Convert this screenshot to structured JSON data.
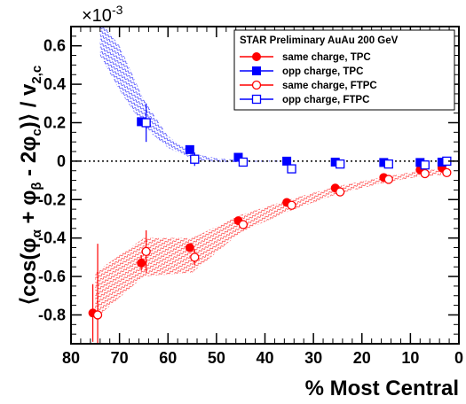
{
  "chart_data": {
    "type": "scatter",
    "exponent_label": "×10",
    "exponent_power": "-3",
    "xlabel": "% Most Central",
    "ylabel": {
      "open": "⟨cos(φ",
      "a": "α",
      "plus": " + φ",
      "b": "β",
      "minus": " - 2φ",
      "c": "c",
      "close": ")⟩ / v",
      "v2c": "2,c"
    },
    "xlim": [
      80,
      0
    ],
    "ylim": [
      -0.95,
      0.7
    ],
    "x_reversed": true,
    "xticks": [
      80,
      70,
      60,
      50,
      40,
      30,
      20,
      10,
      0
    ],
    "yticks": [
      -0.8,
      -0.6,
      -0.4,
      -0.2,
      0,
      0.2,
      0.4,
      0.6
    ],
    "xtick_labels": [
      "80",
      "70",
      "60",
      "50",
      "40",
      "30",
      "20",
      "10",
      "0"
    ],
    "ytick_labels": [
      "-0.8",
      "-0.6",
      "-0.4",
      "-0.2",
      "0",
      "0.2",
      "0.4",
      "0.6"
    ],
    "zero_line": true,
    "legend": {
      "title": "STAR Preliminary  AuAu 200 GeV",
      "placement": "top-right"
    },
    "series": [
      {
        "name": "same charge, TPC",
        "color": "#ff0000",
        "marker": "circle-filled",
        "points": [
          {
            "x": 75.5,
            "y": -0.79,
            "err": 0.15
          },
          {
            "x": 65.5,
            "y": -0.53,
            "err": 0.04
          },
          {
            "x": 55.5,
            "y": -0.45,
            "err": 0.015
          },
          {
            "x": 45.5,
            "y": -0.31,
            "err": 0.01
          },
          {
            "x": 35.5,
            "y": -0.215,
            "err": 0.008
          },
          {
            "x": 25.5,
            "y": -0.14,
            "err": 0.006
          },
          {
            "x": 15.5,
            "y": -0.085,
            "err": 0.005
          },
          {
            "x": 8,
            "y": -0.045,
            "err": 0.004
          },
          {
            "x": 3.5,
            "y": -0.035,
            "err": 0.004
          }
        ]
      },
      {
        "name": "opp charge, TPC",
        "color": "#0000ff",
        "marker": "square-filled",
        "points": [
          {
            "x": 65.5,
            "y": 0.205,
            "err": 0.02
          },
          {
            "x": 55.5,
            "y": 0.06,
            "err": 0.01
          },
          {
            "x": 45.5,
            "y": 0.02,
            "err": 0.006
          },
          {
            "x": 35.5,
            "y": 0.0,
            "err": 0.005
          },
          {
            "x": 25.5,
            "y": -0.005,
            "err": 0.004
          },
          {
            "x": 15.5,
            "y": -0.007,
            "err": 0.004
          },
          {
            "x": 8,
            "y": -0.007,
            "err": 0.004
          },
          {
            "x": 3.5,
            "y": -0.005,
            "err": 0.004
          }
        ]
      },
      {
        "name": "same charge, FTPC",
        "color": "#ff0000",
        "marker": "circle-open",
        "points": [
          {
            "x": 74.5,
            "y": -0.8,
            "err": 0.37
          },
          {
            "x": 64.5,
            "y": -0.47,
            "err": 0.11
          },
          {
            "x": 54.5,
            "y": -0.5,
            "err": 0.04
          },
          {
            "x": 44.5,
            "y": -0.33,
            "err": 0.02
          },
          {
            "x": 34.5,
            "y": -0.23,
            "err": 0.015
          },
          {
            "x": 24.5,
            "y": -0.16,
            "err": 0.012
          },
          {
            "x": 14.5,
            "y": -0.095,
            "err": 0.01
          },
          {
            "x": 7,
            "y": -0.065,
            "err": 0.01
          },
          {
            "x": 2.5,
            "y": -0.06,
            "err": 0.01
          }
        ]
      },
      {
        "name": "opp charge, FTPC",
        "color": "#0000ff",
        "marker": "square-open",
        "points": [
          {
            "x": 64.5,
            "y": 0.2,
            "err": 0.1
          },
          {
            "x": 54.5,
            "y": 0.01,
            "err": 0.035
          },
          {
            "x": 44.5,
            "y": -0.005,
            "err": 0.015
          },
          {
            "x": 34.5,
            "y": -0.04,
            "err": 0.01
          },
          {
            "x": 24.5,
            "y": -0.015,
            "err": 0.008
          },
          {
            "x": 14.5,
            "y": -0.015,
            "err": 0.008
          },
          {
            "x": 7,
            "y": -0.02,
            "err": 0.008
          },
          {
            "x": 2.5,
            "y": 0.0,
            "err": 0.008
          }
        ]
      }
    ],
    "bands": [
      {
        "color": "#ff0000",
        "x": [
          75,
          65,
          55,
          45,
          35,
          25,
          15,
          8,
          3
        ],
        "low": [
          -0.82,
          -0.6,
          -0.58,
          -0.37,
          -0.26,
          -0.17,
          -0.11,
          -0.08,
          -0.07
        ],
        "high": [
          -0.58,
          -0.4,
          -0.4,
          -0.28,
          -0.2,
          -0.13,
          -0.08,
          -0.05,
          -0.04
        ]
      },
      {
        "color": "#0000ff",
        "x": [
          74,
          70,
          65,
          60,
          55,
          50,
          45,
          40,
          35
        ],
        "low": [
          0.55,
          0.37,
          0.18,
          0.07,
          0.01,
          -0.005,
          -0.005,
          -0.003,
          -0.002
        ],
        "high": [
          0.73,
          0.6,
          0.32,
          0.13,
          0.04,
          0.015,
          0.005,
          0.003,
          0.002
        ]
      }
    ]
  }
}
